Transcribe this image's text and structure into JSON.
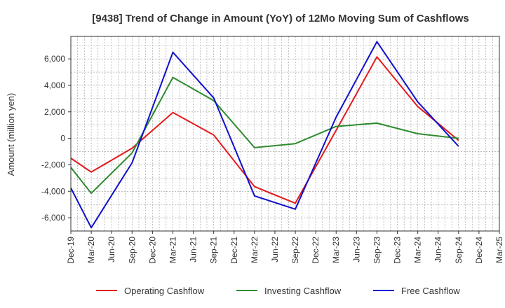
{
  "chart_data": {
    "type": "line",
    "title": "[9438]  Trend of Change in Amount (YoY) of 12Mo Moving Sum of Cashflows",
    "xlabel": "",
    "ylabel": "Amount (million yen)",
    "ylim": [
      -7000,
      7700
    ],
    "yticks": [
      -6000,
      -4000,
      -2000,
      0,
      2000,
      4000,
      6000
    ],
    "ytick_labels": [
      "-6,000",
      "-4,000",
      "-2,000",
      "0",
      "2,000",
      "4,000",
      "6,000"
    ],
    "categories": [
      "Dec-19",
      "Mar-20",
      "Jun-20",
      "Sep-20",
      "Dec-20",
      "Mar-21",
      "Jun-21",
      "Sep-21",
      "Dec-21",
      "Mar-22",
      "Jun-22",
      "Sep-22",
      "Dec-22",
      "Mar-23",
      "Jun-23",
      "Sep-23",
      "Dec-23",
      "Mar-24",
      "Jun-24",
      "Sep-24",
      "Dec-24",
      "Mar-25"
    ],
    "x_axis_labels": [
      "Dec-19",
      "Mar-20",
      "Jun-20",
      "Sep-20",
      "Dec-20",
      "Mar-21",
      "Jun-21",
      "Sep-21",
      "Dec-21",
      "Mar-22",
      "Jun-22",
      "Sep-22",
      "Dec-22",
      "Mar-23",
      "Jun-23",
      "Sep-23",
      "Dec-23",
      "Mar-24",
      "Jun-24",
      "Sep-24",
      "Dec-24",
      "Mar-25"
    ],
    "grid": true,
    "legend_position": "bottom",
    "series": [
      {
        "name": "Operating Cashflow",
        "color": "#e41a1c",
        "values": [
          -1500,
          -2550,
          null,
          -750,
          null,
          1950,
          null,
          250,
          null,
          -3650,
          null,
          -4900,
          null,
          600,
          null,
          6150,
          null,
          2400,
          null,
          -150,
          null,
          null
        ]
      },
      {
        "name": "Investing Cashflow",
        "color": "#2e8b2e",
        "values": [
          -2200,
          -4150,
          null,
          -1100,
          null,
          4600,
          null,
          2850,
          null,
          -700,
          null,
          -400,
          null,
          900,
          null,
          1150,
          null,
          350,
          null,
          0,
          null,
          null
        ]
      },
      {
        "name": "Free Cashflow",
        "color": "#1010cc",
        "values": [
          -3750,
          -6750,
          null,
          -1850,
          null,
          6500,
          null,
          3050,
          null,
          -4350,
          null,
          -5350,
          null,
          1600,
          null,
          7300,
          null,
          2750,
          null,
          -600,
          null,
          null
        ]
      }
    ]
  }
}
